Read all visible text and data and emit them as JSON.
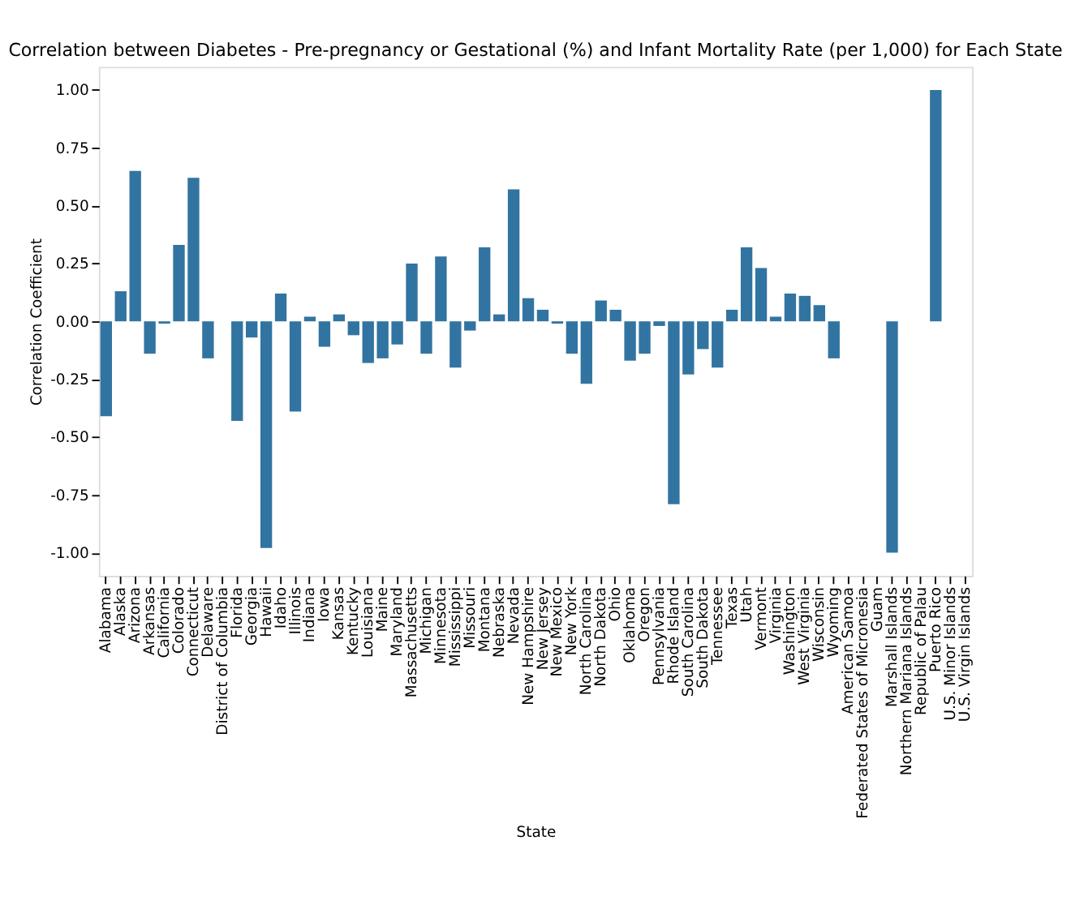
{
  "chart_data": {
    "type": "bar",
    "title": "Correlation between Diabetes - Pre-pregnancy or Gestational (%) and Infant Mortality Rate (per 1,000) for Each State",
    "xlabel": "State",
    "ylabel": "Correlation Coefficient",
    "categories": [
      "Alabama",
      "Alaska",
      "Arizona",
      "Arkansas",
      "California",
      "Colorado",
      "Connecticut",
      "Delaware",
      "District of Columbia",
      "Florida",
      "Georgia",
      "Hawaii",
      "Idaho",
      "Illinois",
      "Indiana",
      "Iowa",
      "Kansas",
      "Kentucky",
      "Louisiana",
      "Maine",
      "Maryland",
      "Massachusetts",
      "Michigan",
      "Minnesota",
      "Mississippi",
      "Missouri",
      "Montana",
      "Nebraska",
      "Nevada",
      "New Hampshire",
      "New Jersey",
      "New Mexico",
      "New York",
      "North Carolina",
      "North Dakota",
      "Ohio",
      "Oklahoma",
      "Oregon",
      "Pennsylvania",
      "Rhode Island",
      "South Carolina",
      "South Dakota",
      "Tennessee",
      "Texas",
      "Utah",
      "Vermont",
      "Virginia",
      "Washington",
      "West Virginia",
      "Wisconsin",
      "Wyoming",
      "American Samoa",
      "Federated States of Micronesia",
      "Guam",
      "Marshall Islands",
      "Northern Mariana Islands",
      "Republic of Palau",
      "Puerto Rico",
      "U.S. Minor Islands",
      "U.S. Virgin Islands"
    ],
    "values": [
      -0.41,
      0.13,
      0.65,
      -0.14,
      -0.01,
      0.33,
      0.62,
      -0.16,
      null,
      -0.43,
      -0.07,
      -0.98,
      0.12,
      -0.39,
      0.02,
      -0.11,
      0.03,
      -0.06,
      -0.18,
      -0.16,
      -0.1,
      0.25,
      -0.14,
      0.28,
      -0.2,
      -0.04,
      0.32,
      0.03,
      0.57,
      0.1,
      0.05,
      -0.01,
      -0.14,
      -0.27,
      0.09,
      0.05,
      -0.17,
      -0.14,
      -0.02,
      -0.79,
      -0.23,
      -0.12,
      -0.2,
      0.05,
      0.32,
      0.23,
      0.02,
      0.12,
      0.11,
      0.07,
      -0.16,
      null,
      null,
      null,
      -1.0,
      null,
      null,
      1.0,
      null,
      null
    ],
    "color": "#3274a1",
    "ylim": [
      -1.1,
      1.1
    ],
    "yticks": [
      {
        "value": -1,
        "label": "-1.00"
      },
      {
        "value": -0.75,
        "label": "-0.75"
      },
      {
        "value": -0.5,
        "label": "-0.50"
      },
      {
        "value": -0.25,
        "label": "-0.25"
      },
      {
        "value": 0,
        "label": "0.00"
      },
      {
        "value": 0.25,
        "label": "0.25"
      },
      {
        "value": 0.5,
        "label": "0.50"
      },
      {
        "value": 0.75,
        "label": "0.75"
      },
      {
        "value": 1,
        "label": "1.00"
      }
    ],
    "grid": false
  }
}
